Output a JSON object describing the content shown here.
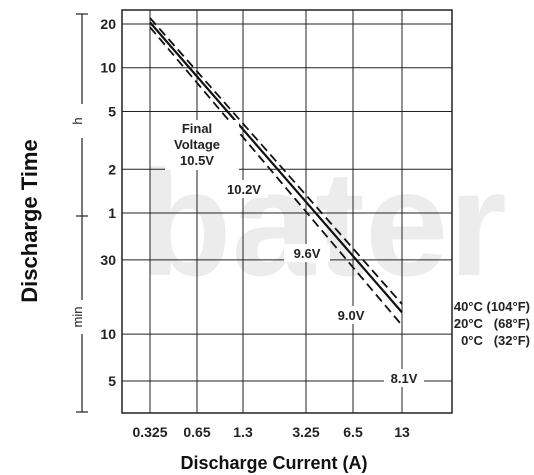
{
  "chart_data": {
    "type": "line",
    "title": "",
    "xlabel": "Discharge Current (A)",
    "ylabel": "Discharge Time",
    "x_scale": "log",
    "x_ticks": [
      "0.325",
      "0.65",
      "1.3",
      "3.25",
      "6.5",
      "13"
    ],
    "y_units": {
      "hours": "h",
      "minutes": "min"
    },
    "y_ticks_hours": [
      "20",
      "10",
      "5",
      "2",
      "1"
    ],
    "y_ticks_minutes": [
      "30",
      "10",
      "5"
    ],
    "grid": true,
    "watermark": "bater",
    "series": [
      {
        "name": "40°C (104°F)",
        "style": "dashed",
        "x": [
          0.325,
          13
        ],
        "y_hours": [
          22,
          0.26
        ]
      },
      {
        "name": "20°C   (68°F)",
        "style": "solid",
        "x": [
          0.325,
          13
        ],
        "y_hours": [
          20.5,
          0.23
        ]
      },
      {
        "name": "0°C   (32°F)",
        "style": "dashed",
        "x": [
          0.325,
          13
        ],
        "y_hours": [
          19,
          0.19
        ]
      }
    ],
    "annotations": [
      "Final",
      "Voltage",
      "10.5V",
      "10.2V",
      "9.6V",
      "9.0V",
      "8.1V"
    ]
  }
}
